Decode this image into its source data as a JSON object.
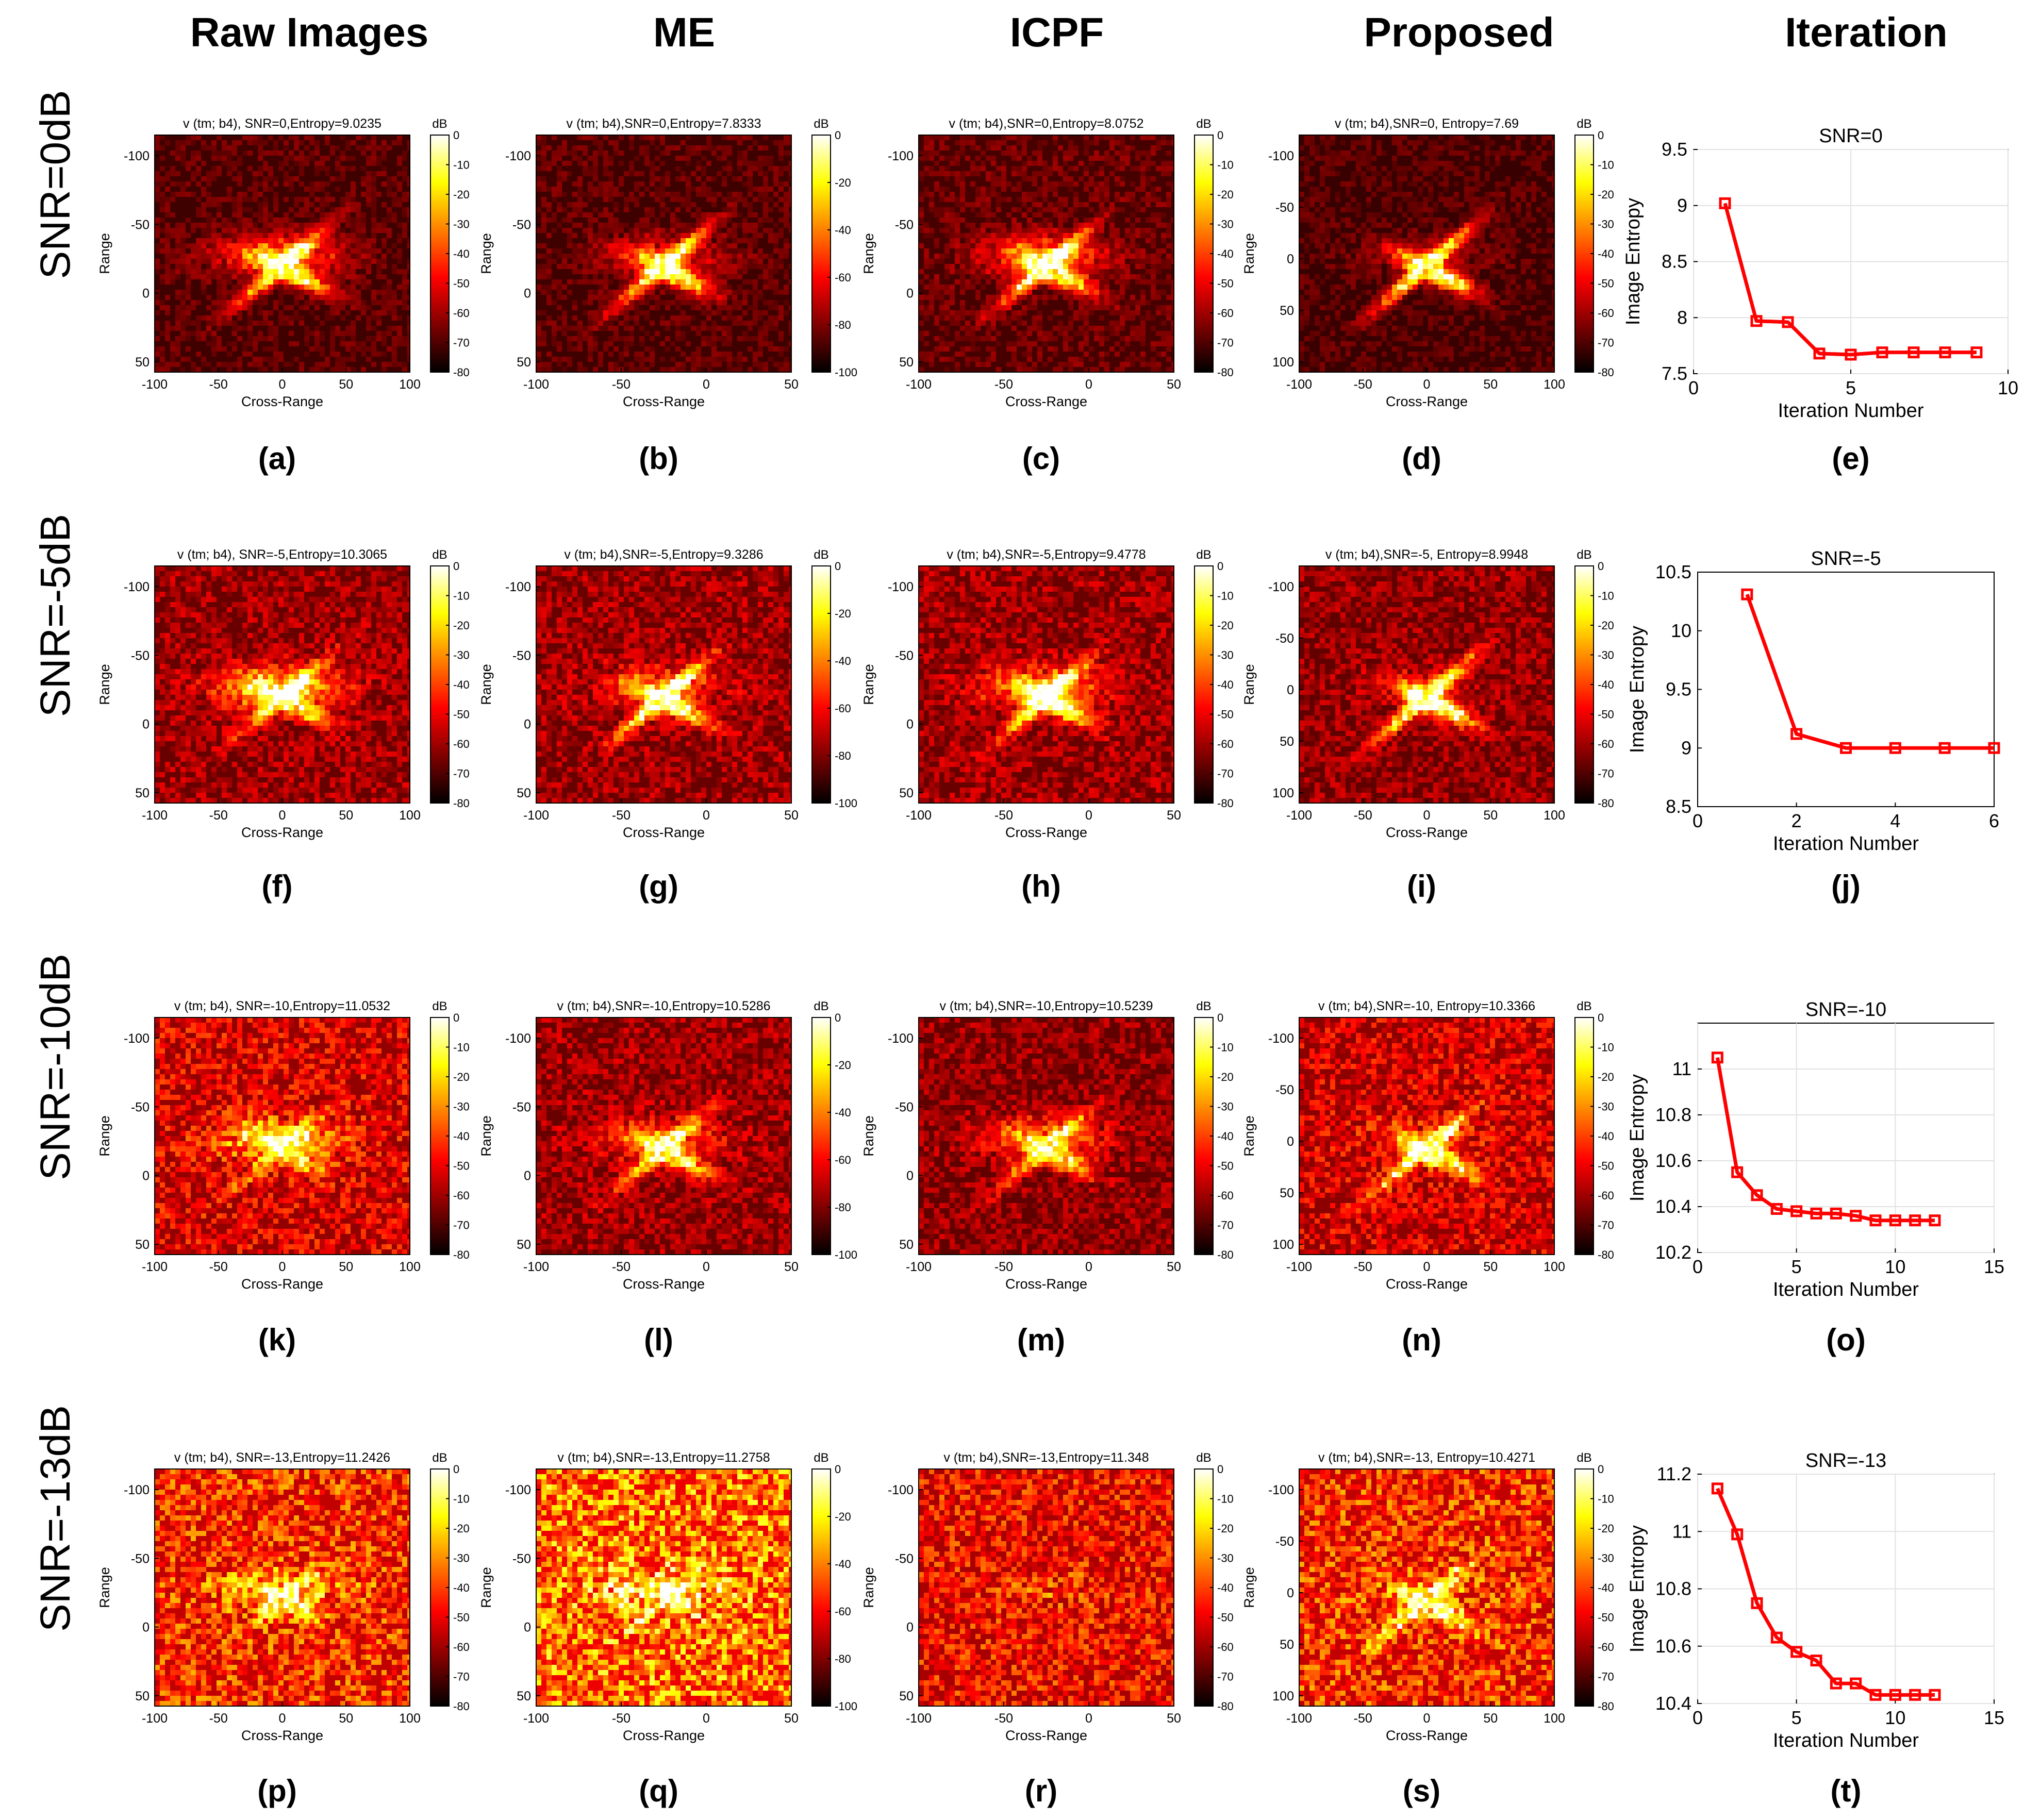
{
  "column_headers": [
    "Raw Images",
    "ME",
    "ICPF",
    "Proposed",
    "Iteration"
  ],
  "rows": [
    {
      "row_label": "SNR=0dB",
      "images": [
        {
          "subfig": "(a)",
          "title": "v (tm; b4), SNR=0,Entropy=9.0235",
          "xticks": [
            "-100",
            "-50",
            "0",
            "50",
            "100"
          ],
          "yticks": [
            "-100",
            "-50",
            "0",
            "50"
          ],
          "cbar_ticks": [
            "0",
            "-10",
            "-20",
            "-30",
            "-40",
            "-50",
            "-60",
            "-70",
            "-80"
          ],
          "cbar_unit": "dB",
          "xlabel": "Cross-Range",
          "ylabel": "Range",
          "noise": 0.18,
          "target": 0.65,
          "streak": 0.6,
          "seed": 11
        },
        {
          "subfig": "(b)",
          "title": "v (tm; b4),SNR=0,Entropy=7.8333",
          "xticks": [
            "-100",
            "-50",
            "0",
            "50"
          ],
          "yticks": [
            "-100",
            "-50",
            "0",
            "50"
          ],
          "cbar_ticks": [
            "0",
            "-20",
            "-40",
            "-60",
            "-80",
            "-100"
          ],
          "cbar_unit": "dB",
          "xlabel": "Cross-Range",
          "ylabel": "Range",
          "noise": 0.18,
          "target": 0.75,
          "streak": 0.35,
          "seed": 12
        },
        {
          "subfig": "(c)",
          "title": "v (tm; b4),SNR=0,Entropy=8.0752",
          "xticks": [
            "-100",
            "-50",
            "0",
            "50"
          ],
          "yticks": [
            "-100",
            "-50",
            "0",
            "50"
          ],
          "cbar_ticks": [
            "0",
            "-10",
            "-20",
            "-30",
            "-40",
            "-50",
            "-60",
            "-70",
            "-80"
          ],
          "cbar_unit": "dB",
          "xlabel": "Cross-Range",
          "ylabel": "Range",
          "noise": 0.2,
          "target": 0.7,
          "streak": 0.55,
          "seed": 13
        },
        {
          "subfig": "(d)",
          "title": "v (tm; b4),SNR=0, Entropy=7.69",
          "xticks": [
            "-100",
            "-50",
            "0",
            "50",
            "100"
          ],
          "yticks": [
            "-100",
            "-50",
            "0",
            "50",
            "100"
          ],
          "cbar_ticks": [
            "0",
            "-10",
            "-20",
            "-30",
            "-40",
            "-50",
            "-60",
            "-70",
            "-80"
          ],
          "cbar_unit": "dB",
          "xlabel": "Cross-Range",
          "ylabel": "Range",
          "noise": 0.16,
          "target": 0.85,
          "streak": 0.2,
          "seed": 14
        }
      ],
      "chart_data": {
        "subfig": "(e)",
        "type": "line",
        "title": "SNR=0",
        "x": [
          1,
          2,
          3,
          4,
          5,
          6,
          7,
          8,
          9
        ],
        "y": [
          9.02,
          7.97,
          7.96,
          7.68,
          7.67,
          7.69,
          7.69,
          7.69,
          7.69
        ],
        "xlim": [
          0,
          10
        ],
        "ylim": [
          7.5,
          9.5
        ],
        "xticks": [
          "0",
          "5",
          "10"
        ],
        "xtick_values": [
          0,
          5,
          10
        ],
        "yticks": [
          "7.5",
          "8",
          "8.5",
          "9",
          "9.5"
        ],
        "ytick_values": [
          7.5,
          8,
          8.5,
          9,
          9.5
        ],
        "xlabel": "Iteration Number",
        "ylabel": "Image Entropy",
        "grid": true
      }
    },
    {
      "row_label": "SNR=-5dB",
      "images": [
        {
          "subfig": "(f)",
          "title": "v (tm; b4), SNR=-5,Entropy=10.3065",
          "xticks": [
            "-100",
            "-50",
            "0",
            "50",
            "100"
          ],
          "yticks": [
            "-100",
            "-50",
            "0",
            "50"
          ],
          "cbar_ticks": [
            "0",
            "-10",
            "-20",
            "-30",
            "-40",
            "-50",
            "-60",
            "-70",
            "-80"
          ],
          "cbar_unit": "dB",
          "xlabel": "Cross-Range",
          "ylabel": "Range",
          "noise": 0.3,
          "target": 0.5,
          "streak": 0.7,
          "seed": 21
        },
        {
          "subfig": "(g)",
          "title": "v (tm; b4),SNR=-5,Entropy=9.3286",
          "xticks": [
            "-100",
            "-50",
            "0",
            "50"
          ],
          "yticks": [
            "-100",
            "-50",
            "0",
            "50"
          ],
          "cbar_ticks": [
            "0",
            "-20",
            "-40",
            "-60",
            "-80",
            "-100"
          ],
          "cbar_unit": "dB",
          "xlabel": "Cross-Range",
          "ylabel": "Range",
          "noise": 0.3,
          "target": 0.7,
          "streak": 0.4,
          "seed": 22
        },
        {
          "subfig": "(h)",
          "title": "v (tm; b4),SNR=-5,Entropy=9.4778",
          "xticks": [
            "-100",
            "-50",
            "0",
            "50"
          ],
          "yticks": [
            "-100",
            "-50",
            "0",
            "50"
          ],
          "cbar_ticks": [
            "0",
            "-10",
            "-20",
            "-30",
            "-40",
            "-50",
            "-60",
            "-70",
            "-80"
          ],
          "cbar_unit": "dB",
          "xlabel": "Cross-Range",
          "ylabel": "Range",
          "noise": 0.3,
          "target": 0.65,
          "streak": 0.55,
          "seed": 23
        },
        {
          "subfig": "(i)",
          "title": "v (tm; b4),SNR=-5, Entropy=8.9948",
          "xticks": [
            "-100",
            "-50",
            "0",
            "50",
            "100"
          ],
          "yticks": [
            "-100",
            "-50",
            "0",
            "50",
            "100"
          ],
          "cbar_ticks": [
            "0",
            "-10",
            "-20",
            "-30",
            "-40",
            "-50",
            "-60",
            "-70",
            "-80"
          ],
          "cbar_unit": "dB",
          "xlabel": "Cross-Range",
          "ylabel": "Range",
          "noise": 0.28,
          "target": 0.8,
          "streak": 0.2,
          "seed": 24
        }
      ],
      "chart_data": {
        "subfig": "(j)",
        "type": "line",
        "title": "SNR=-5",
        "x": [
          1,
          2,
          3,
          4,
          5,
          6
        ],
        "y": [
          10.31,
          9.12,
          9.0,
          9.0,
          9.0,
          9.0
        ],
        "xlim": [
          0,
          6
        ],
        "ylim": [
          8.5,
          10.5
        ],
        "xticks": [
          "0",
          "2",
          "4",
          "6"
        ],
        "xtick_values": [
          0,
          2,
          4,
          6
        ],
        "yticks": [
          "8.5",
          "9",
          "9.5",
          "10",
          "10.5"
        ],
        "ytick_values": [
          8.5,
          9,
          9.5,
          10,
          10.5
        ],
        "xlabel": "Iteration Number",
        "ylabel": "Image Entropy",
        "grid": false
      }
    },
    {
      "row_label": "SNR=-10dB",
      "images": [
        {
          "subfig": "(k)",
          "title": "v (tm; b4), SNR=-10,Entropy=11.0532",
          "xticks": [
            "-100",
            "-50",
            "0",
            "50",
            "100"
          ],
          "yticks": [
            "-100",
            "-50",
            "0",
            "50"
          ],
          "cbar_ticks": [
            "0",
            "-10",
            "-20",
            "-30",
            "-40",
            "-50",
            "-60",
            "-70",
            "-80"
          ],
          "cbar_unit": "dB",
          "xlabel": "Cross-Range",
          "ylabel": "Range",
          "noise": 0.42,
          "target": 0.35,
          "streak": 0.6,
          "seed": 31
        },
        {
          "subfig": "(l)",
          "title": "v (tm; b4),SNR=-10,Entropy=10.5286",
          "xticks": [
            "-100",
            "-50",
            "0",
            "50"
          ],
          "yticks": [
            "-100",
            "-50",
            "0",
            "50"
          ],
          "cbar_ticks": [
            "0",
            "-20",
            "-40",
            "-60",
            "-80",
            "-100"
          ],
          "cbar_unit": "dB",
          "xlabel": "Cross-Range",
          "ylabel": "Range",
          "noise": 0.3,
          "target": 0.6,
          "streak": 0.4,
          "seed": 32
        },
        {
          "subfig": "(m)",
          "title": "v (tm; b4),SNR=-10,Entropy=10.5239",
          "xticks": [
            "-100",
            "-50",
            "0",
            "50"
          ],
          "yticks": [
            "-100",
            "-50",
            "0",
            "50"
          ],
          "cbar_ticks": [
            "0",
            "-10",
            "-20",
            "-30",
            "-40",
            "-50",
            "-60",
            "-70",
            "-80"
          ],
          "cbar_unit": "dB",
          "xlabel": "Cross-Range",
          "ylabel": "Range",
          "noise": 0.28,
          "target": 0.5,
          "streak": 0.5,
          "seed": 33
        },
        {
          "subfig": "(n)",
          "title": "v (tm; b4),SNR=-10, Entropy=10.3366",
          "xticks": [
            "-100",
            "-50",
            "0",
            "50",
            "100"
          ],
          "yticks": [
            "-100",
            "-50",
            "0",
            "50",
            "100"
          ],
          "cbar_ticks": [
            "0",
            "-10",
            "-20",
            "-30",
            "-40",
            "-50",
            "-60",
            "-70",
            "-80"
          ],
          "cbar_unit": "dB",
          "xlabel": "Cross-Range",
          "ylabel": "Range",
          "noise": 0.4,
          "target": 0.65,
          "streak": 0.2,
          "seed": 34
        }
      ],
      "chart_data": {
        "subfig": "(o)",
        "type": "line",
        "title": "SNR=-10",
        "x": [
          1,
          2,
          3,
          4,
          5,
          6,
          7,
          8,
          9,
          10,
          11,
          12
        ],
        "y": [
          11.05,
          10.55,
          10.45,
          10.39,
          10.38,
          10.37,
          10.37,
          10.36,
          10.34,
          10.34,
          10.34,
          10.34
        ],
        "xlim": [
          0,
          15
        ],
        "ylim": [
          10.2,
          11.2
        ],
        "xticks": [
          "0",
          "5",
          "10",
          "15"
        ],
        "xtick_values": [
          0,
          5,
          10,
          15
        ],
        "yticks": [
          "10.2",
          "10.4",
          "10.6",
          "10.8",
          "11"
        ],
        "ytick_values": [
          10.2,
          10.4,
          10.6,
          10.8,
          11
        ],
        "xlabel": "Iteration Number",
        "ylabel": "Image Entropy",
        "grid": true
      }
    },
    {
      "row_label": "SNR=-13dB",
      "images": [
        {
          "subfig": "(p)",
          "title": "v (tm; b4), SNR=-13,Entropy=11.2426",
          "xticks": [
            "-100",
            "-50",
            "0",
            "50",
            "100"
          ],
          "yticks": [
            "-100",
            "-50",
            "0",
            "50"
          ],
          "cbar_ticks": [
            "0",
            "-10",
            "-20",
            "-30",
            "-40",
            "-50",
            "-60",
            "-70",
            "-80"
          ],
          "cbar_unit": "dB",
          "xlabel": "Cross-Range",
          "ylabel": "Range",
          "noise": 0.55,
          "target": 0.2,
          "streak": 0.45,
          "seed": 41
        },
        {
          "subfig": "(q)",
          "title": "v (tm; b4),SNR=-13,Entropy=11.2758",
          "xticks": [
            "-100",
            "-50",
            "0",
            "50"
          ],
          "yticks": [
            "-100",
            "-50",
            "0",
            "50"
          ],
          "cbar_ticks": [
            "0",
            "-20",
            "-40",
            "-60",
            "-80",
            "-100"
          ],
          "cbar_unit": "dB",
          "xlabel": "Cross-Range",
          "ylabel": "Range",
          "noise": 0.68,
          "target": 0.15,
          "streak": 0.4,
          "seed": 42
        },
        {
          "subfig": "(r)",
          "title": "v (tm; b4),SNR=-13,Entropy=11.348",
          "xticks": [
            "-100",
            "-50",
            "0",
            "50"
          ],
          "yticks": [
            "-100",
            "-50",
            "0",
            "50"
          ],
          "cbar_ticks": [
            "0",
            "-10",
            "-20",
            "-30",
            "-40",
            "-50",
            "-60",
            "-70",
            "-80"
          ],
          "cbar_unit": "dB",
          "xlabel": "Cross-Range",
          "ylabel": "Range",
          "noise": 0.48,
          "target": 0.05,
          "streak": 0.1,
          "seed": 43
        },
        {
          "subfig": "(s)",
          "title": "v (tm; b4),SNR=-13, Entropy=10.4271",
          "xticks": [
            "-100",
            "-50",
            "0",
            "50",
            "100"
          ],
          "yticks": [
            "-100",
            "-50",
            "0",
            "50",
            "100"
          ],
          "cbar_ticks": [
            "0",
            "-10",
            "-20",
            "-30",
            "-40",
            "-50",
            "-60",
            "-70",
            "-80"
          ],
          "cbar_unit": "dB",
          "xlabel": "Cross-Range",
          "ylabel": "Range",
          "noise": 0.55,
          "target": 0.55,
          "streak": 0.15,
          "seed": 44
        }
      ],
      "chart_data": {
        "subfig": "(t)",
        "type": "line",
        "title": "SNR=-13",
        "x": [
          1,
          2,
          3,
          4,
          5,
          6,
          7,
          8,
          9,
          10,
          11,
          12
        ],
        "y": [
          11.15,
          10.99,
          10.75,
          10.63,
          10.58,
          10.55,
          10.47,
          10.47,
          10.43,
          10.43,
          10.43,
          10.43
        ],
        "xlim": [
          0,
          15
        ],
        "ylim": [
          10.4,
          11.2
        ],
        "xticks": [
          "0",
          "5",
          "10",
          "15"
        ],
        "xtick_values": [
          0,
          5,
          10,
          15
        ],
        "yticks": [
          "10.4",
          "10.6",
          "10.8",
          "11",
          "11.2"
        ],
        "ytick_values": [
          10.4,
          10.6,
          10.8,
          11,
          11.2
        ],
        "xlabel": "Iteration Number",
        "ylabel": "Image Entropy",
        "grid": true
      }
    }
  ]
}
